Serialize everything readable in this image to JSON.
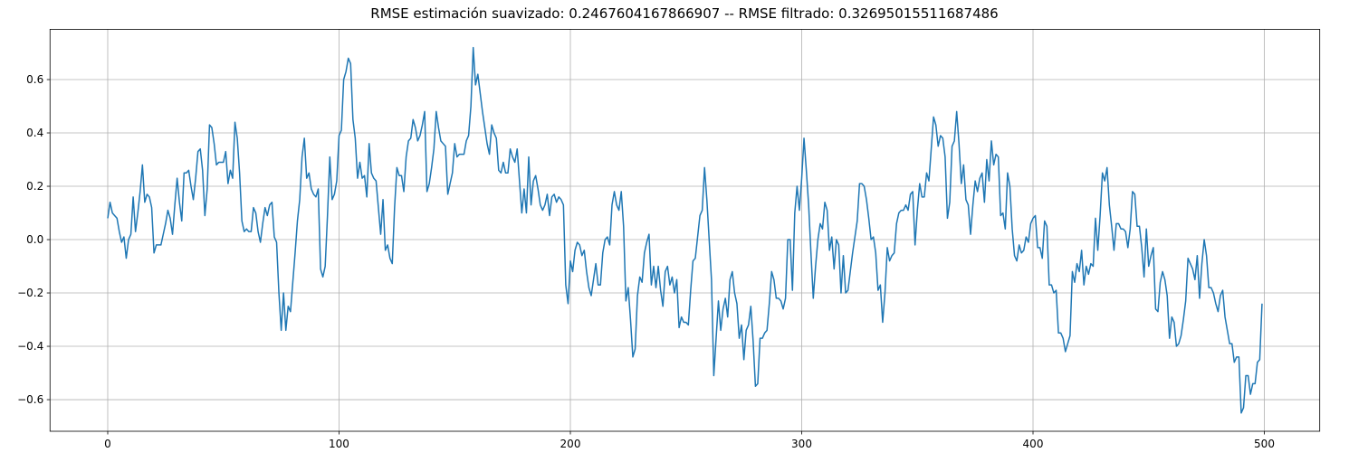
{
  "chart_data": {
    "type": "line",
    "title": "RMSE estimación suavizado: 0.2467604167866907 -- RMSE filtrado: 0.32695015511687486",
    "x": [
      0,
      1,
      2,
      3,
      4,
      5,
      6,
      7,
      8,
      9,
      10,
      11,
      12,
      13,
      14,
      15,
      16,
      17,
      18,
      19,
      20,
      21,
      22,
      23,
      24,
      25,
      26,
      27,
      28,
      29,
      30,
      31,
      32,
      33,
      34,
      35,
      36,
      37,
      38,
      39,
      40,
      41,
      42,
      43,
      44,
      45,
      46,
      47,
      48,
      49,
      50,
      51,
      52,
      53,
      54,
      55,
      56,
      57,
      58,
      59,
      60,
      61,
      62,
      63,
      64,
      65,
      66,
      67,
      68,
      69,
      70,
      71,
      72,
      73,
      74,
      75,
      76,
      77,
      78,
      79,
      80,
      81,
      82,
      83,
      84,
      85,
      86,
      87,
      88,
      89,
      90,
      91,
      92,
      93,
      94,
      95,
      96,
      97,
      98,
      99,
      100,
      101,
      102,
      103,
      104,
      105,
      106,
      107,
      108,
      109,
      110,
      111,
      112,
      113,
      114,
      115,
      116,
      117,
      118,
      119,
      120,
      121,
      122,
      123,
      124,
      125,
      126,
      127,
      128,
      129,
      130,
      131,
      132,
      133,
      134,
      135,
      136,
      137,
      138,
      139,
      140,
      141,
      142,
      143,
      144,
      145,
      146,
      147,
      148,
      149,
      150,
      151,
      152,
      153,
      154,
      155,
      156,
      157,
      158,
      159,
      160,
      161,
      162,
      163,
      164,
      165,
      166,
      167,
      168,
      169,
      170,
      171,
      172,
      173,
      174,
      175,
      176,
      177,
      178,
      179,
      180,
      181,
      182,
      183,
      184,
      185,
      186,
      187,
      188,
      189,
      190,
      191,
      192,
      193,
      194,
      195,
      196,
      197,
      198,
      199,
      200,
      201,
      202,
      203,
      204,
      205,
      206,
      207,
      208,
      209,
      210,
      211,
      212,
      213,
      214,
      215,
      216,
      217,
      218,
      219,
      220,
      221,
      222,
      223,
      224,
      225,
      226,
      227,
      228,
      229,
      230,
      231,
      232,
      233,
      234,
      235,
      236,
      237,
      238,
      239,
      240,
      241,
      242,
      243,
      244,
      245,
      246,
      247,
      248,
      249,
      250,
      251,
      252,
      253,
      254,
      255,
      256,
      257,
      258,
      259,
      260,
      261,
      262,
      263,
      264,
      265,
      266,
      267,
      268,
      269,
      270,
      271,
      272,
      273,
      274,
      275,
      276,
      277,
      278,
      279,
      280,
      281,
      282,
      283,
      284,
      285,
      286,
      287,
      288,
      289,
      290,
      291,
      292,
      293,
      294,
      295,
      296,
      297,
      298,
      299,
      300,
      301,
      302,
      303,
      304,
      305,
      306,
      307,
      308,
      309,
      310,
      311,
      312,
      313,
      314,
      315,
      316,
      317,
      318,
      319,
      320,
      321,
      322,
      323,
      324,
      325,
      326,
      327,
      328,
      329,
      330,
      331,
      332,
      333,
      334,
      335,
      336,
      337,
      338,
      339,
      340,
      341,
      342,
      343,
      344,
      345,
      346,
      347,
      348,
      349,
      350,
      351,
      352,
      353,
      354,
      355,
      356,
      357,
      358,
      359,
      360,
      361,
      362,
      363,
      364,
      365,
      366,
      367,
      368,
      369,
      370,
      371,
      372,
      373,
      374,
      375,
      376,
      377,
      378,
      379,
      380,
      381,
      382,
      383,
      384,
      385,
      386,
      387,
      388,
      389,
      390,
      391,
      392,
      393,
      394,
      395,
      396,
      397,
      398,
      399,
      400,
      401,
      402,
      403,
      404,
      405,
      406,
      407,
      408,
      409,
      410,
      411,
      412,
      413,
      414,
      415,
      416,
      417,
      418,
      419,
      420,
      421,
      422,
      423,
      424,
      425,
      426,
      427,
      428,
      429,
      430,
      431,
      432,
      433,
      434,
      435,
      436,
      437,
      438,
      439,
      440,
      441,
      442,
      443,
      444,
      445,
      446,
      447,
      448,
      449,
      450,
      451,
      452,
      453,
      454,
      455,
      456,
      457,
      458,
      459,
      460,
      461,
      462,
      463,
      464,
      465,
      466,
      467,
      468,
      469,
      470,
      471,
      472,
      473,
      474,
      475,
      476,
      477,
      478,
      479,
      480,
      481,
      482,
      483,
      484,
      485,
      486,
      487,
      488,
      489,
      490,
      491,
      492,
      493,
      494,
      495,
      496,
      497,
      498,
      499
    ],
    "series": [
      {
        "color": "#1f77b4",
        "values": [
          0.08,
          0.14,
          0.1,
          0.09,
          0.08,
          0.03,
          -0.01,
          0.01,
          -0.07,
          0.0,
          0.02,
          0.16,
          0.03,
          0.1,
          0.18,
          0.28,
          0.14,
          0.17,
          0.16,
          0.12,
          -0.05,
          -0.02,
          -0.02,
          -0.02,
          0.02,
          0.06,
          0.11,
          0.08,
          0.02,
          0.13,
          0.23,
          0.14,
          0.07,
          0.25,
          0.25,
          0.26,
          0.2,
          0.15,
          0.23,
          0.33,
          0.34,
          0.26,
          0.09,
          0.19,
          0.43,
          0.42,
          0.36,
          0.28,
          0.29,
          0.29,
          0.29,
          0.33,
          0.21,
          0.26,
          0.23,
          0.44,
          0.38,
          0.25,
          0.07,
          0.03,
          0.04,
          0.03,
          0.03,
          0.12,
          0.1,
          0.03,
          -0.01,
          0.06,
          0.12,
          0.09,
          0.13,
          0.14,
          0.01,
          -0.01,
          -0.2,
          -0.34,
          -0.2,
          -0.34,
          -0.25,
          -0.27,
          -0.16,
          -0.05,
          0.07,
          0.15,
          0.31,
          0.38,
          0.23,
          0.25,
          0.19,
          0.17,
          0.16,
          0.19,
          -0.11,
          -0.14,
          -0.1,
          0.09,
          0.31,
          0.15,
          0.17,
          0.22,
          0.39,
          0.41,
          0.6,
          0.63,
          0.68,
          0.66,
          0.45,
          0.38,
          0.23,
          0.29,
          0.23,
          0.24,
          0.16,
          0.36,
          0.25,
          0.23,
          0.22,
          0.12,
          0.02,
          0.15,
          -0.04,
          -0.02,
          -0.07,
          -0.09,
          0.12,
          0.27,
          0.24,
          0.24,
          0.18,
          0.31,
          0.37,
          0.38,
          0.45,
          0.42,
          0.37,
          0.39,
          0.43,
          0.48,
          0.18,
          0.21,
          0.27,
          0.34,
          0.48,
          0.42,
          0.37,
          0.36,
          0.35,
          0.17,
          0.21,
          0.25,
          0.36,
          0.31,
          0.32,
          0.32,
          0.32,
          0.37,
          0.39,
          0.5,
          0.72,
          0.58,
          0.62,
          0.55,
          0.48,
          0.42,
          0.36,
          0.32,
          0.43,
          0.4,
          0.38,
          0.26,
          0.25,
          0.29,
          0.25,
          0.25,
          0.34,
          0.31,
          0.29,
          0.34,
          0.22,
          0.1,
          0.19,
          0.1,
          0.31,
          0.13,
          0.22,
          0.24,
          0.19,
          0.13,
          0.11,
          0.13,
          0.17,
          0.09,
          0.16,
          0.17,
          0.14,
          0.16,
          0.15,
          0.13,
          -0.17,
          -0.24,
          -0.08,
          -0.12,
          -0.04,
          -0.01,
          -0.02,
          -0.06,
          -0.04,
          -0.12,
          -0.18,
          -0.21,
          -0.15,
          -0.09,
          -0.17,
          -0.17,
          -0.05,
          0.0,
          0.01,
          -0.02,
          0.13,
          0.18,
          0.13,
          0.11,
          0.18,
          0.05,
          -0.23,
          -0.18,
          -0.3,
          -0.44,
          -0.41,
          -0.21,
          -0.14,
          -0.16,
          -0.05,
          -0.01,
          0.02,
          -0.17,
          -0.1,
          -0.18,
          -0.1,
          -0.19,
          -0.25,
          -0.12,
          -0.1,
          -0.17,
          -0.14,
          -0.2,
          -0.15,
          -0.33,
          -0.29,
          -0.31,
          -0.31,
          -0.32,
          -0.19,
          -0.08,
          -0.07,
          0.01,
          0.09,
          0.11,
          0.27,
          0.15,
          0.0,
          -0.15,
          -0.51,
          -0.37,
          -0.23,
          -0.34,
          -0.26,
          -0.22,
          -0.29,
          -0.15,
          -0.12,
          -0.2,
          -0.24,
          -0.37,
          -0.32,
          -0.45,
          -0.34,
          -0.32,
          -0.25,
          -0.38,
          -0.55,
          -0.54,
          -0.37,
          -0.37,
          -0.35,
          -0.34,
          -0.24,
          -0.12,
          -0.15,
          -0.22,
          -0.22,
          -0.23,
          -0.26,
          -0.22,
          0.0,
          0.0,
          -0.19,
          0.1,
          0.2,
          0.11,
          0.23,
          0.38,
          0.26,
          0.13,
          -0.05,
          -0.22,
          -0.1,
          0.0,
          0.06,
          0.04,
          0.14,
          0.11,
          -0.04,
          0.01,
          -0.11,
          0.0,
          -0.02,
          -0.2,
          -0.06,
          -0.2,
          -0.19,
          -0.12,
          -0.05,
          0.01,
          0.07,
          0.21,
          0.21,
          0.2,
          0.15,
          0.08,
          0.0,
          0.01,
          -0.05,
          -0.19,
          -0.17,
          -0.31,
          -0.2,
          -0.03,
          -0.08,
          -0.06,
          -0.05,
          0.06,
          0.1,
          0.11,
          0.11,
          0.13,
          0.11,
          0.17,
          0.18,
          -0.02,
          0.11,
          0.21,
          0.16,
          0.16,
          0.25,
          0.22,
          0.34,
          0.46,
          0.43,
          0.35,
          0.39,
          0.38,
          0.31,
          0.08,
          0.14,
          0.35,
          0.37,
          0.48,
          0.36,
          0.21,
          0.28,
          0.15,
          0.13,
          0.02,
          0.13,
          0.22,
          0.18,
          0.23,
          0.25,
          0.14,
          0.3,
          0.22,
          0.37,
          0.28,
          0.32,
          0.31,
          0.09,
          0.1,
          0.04,
          0.25,
          0.2,
          0.04,
          -0.06,
          -0.08,
          -0.02,
          -0.05,
          -0.04,
          0.01,
          -0.01,
          0.06,
          0.08,
          0.09,
          -0.03,
          -0.03,
          -0.07,
          0.07,
          0.05,
          -0.17,
          -0.17,
          -0.2,
          -0.19,
          -0.35,
          -0.35,
          -0.37,
          -0.42,
          -0.39,
          -0.36,
          -0.12,
          -0.16,
          -0.09,
          -0.12,
          -0.04,
          -0.17,
          -0.1,
          -0.13,
          -0.09,
          -0.1,
          0.08,
          -0.04,
          0.09,
          0.25,
          0.22,
          0.27,
          0.13,
          0.05,
          -0.04,
          0.06,
          0.06,
          0.04,
          0.04,
          0.03,
          -0.03,
          0.04,
          0.18,
          0.17,
          0.05,
          0.05,
          -0.03,
          -0.14,
          0.04,
          -0.1,
          -0.06,
          -0.03,
          -0.26,
          -0.27,
          -0.16,
          -0.12,
          -0.15,
          -0.21,
          -0.37,
          -0.29,
          -0.31,
          -0.4,
          -0.39,
          -0.36,
          -0.3,
          -0.23,
          -0.07,
          -0.09,
          -0.11,
          -0.15,
          -0.06,
          -0.22,
          -0.09,
          0.0,
          -0.06,
          -0.18,
          -0.18,
          -0.2,
          -0.24,
          -0.27,
          -0.21,
          -0.19,
          -0.29,
          -0.34,
          -0.39,
          -0.39,
          -0.46,
          -0.44,
          -0.44,
          -0.65,
          -0.63,
          -0.51,
          -0.51,
          -0.58,
          -0.54,
          -0.54,
          -0.46,
          -0.45,
          -0.24
        ]
      }
    ],
    "xlim": [
      -24.95,
      523.95
    ],
    "xticks": [
      0,
      100,
      200,
      300,
      400,
      500
    ],
    "ylim": [
      -0.7185,
      0.7885
    ],
    "yticks": [
      {
        "value": -0.6,
        "label": "−0.6"
      },
      {
        "value": -0.4,
        "label": "−0.4"
      },
      {
        "value": -0.2,
        "label": "−0.2"
      },
      {
        "value": 0,
        "label": "0.0"
      },
      0.2,
      0.4,
      0.6
    ],
    "grid": true
  }
}
